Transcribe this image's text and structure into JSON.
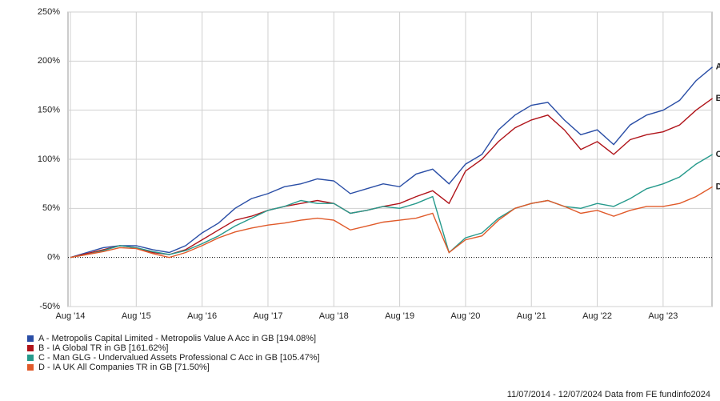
{
  "chart_data": {
    "type": "line",
    "categories": [
      "Aug '14",
      null,
      null,
      null,
      "Aug '15",
      null,
      null,
      null,
      "Aug '16",
      null,
      null,
      null,
      "Aug '17",
      null,
      null,
      null,
      "Aug '18",
      null,
      null,
      null,
      "Aug '19",
      null,
      null,
      null,
      "Aug '20",
      null,
      null,
      null,
      "Aug '21",
      null,
      null,
      null,
      "Aug '22",
      null,
      null,
      null,
      "Aug '23",
      null,
      null,
      null
    ],
    "series": [
      {
        "name": "A - Metropolis Capital Limited - Metropolis Value A Acc in GB [194.08%]",
        "label": "A",
        "color": "#2a4ea6",
        "values": [
          0,
          5,
          10,
          12,
          12,
          8,
          5,
          12,
          25,
          35,
          50,
          60,
          65,
          72,
          75,
          80,
          78,
          65,
          70,
          75,
          72,
          85,
          90,
          75,
          95,
          105,
          130,
          145,
          155,
          158,
          140,
          125,
          130,
          115,
          135,
          145,
          150,
          160,
          180,
          194
        ]
      },
      {
        "name": "B - IA Global TR in GB [161.62%]",
        "label": "B",
        "color": "#b0141a",
        "values": [
          0,
          4,
          8,
          12,
          10,
          5,
          3,
          8,
          18,
          28,
          38,
          42,
          48,
          52,
          55,
          58,
          55,
          45,
          48,
          52,
          55,
          62,
          68,
          55,
          88,
          100,
          118,
          132,
          140,
          145,
          130,
          110,
          118,
          105,
          120,
          125,
          128,
          135,
          150,
          162
        ]
      },
      {
        "name": "C - Man GLG - Undervalued Assets Professional C Acc in GB [105.47%]",
        "label": "C",
        "color": "#269a8c",
        "values": [
          0,
          3,
          7,
          12,
          10,
          6,
          3,
          7,
          14,
          22,
          32,
          40,
          48,
          52,
          58,
          55,
          55,
          45,
          48,
          52,
          50,
          55,
          62,
          5,
          20,
          25,
          40,
          50,
          55,
          58,
          52,
          50,
          55,
          52,
          60,
          70,
          75,
          82,
          95,
          105
        ]
      },
      {
        "name": "D - IA UK All Companies TR in GB [71.50%]",
        "label": "D",
        "color": "#e05a2a",
        "values": [
          0,
          3,
          6,
          10,
          9,
          4,
          0,
          5,
          12,
          20,
          26,
          30,
          33,
          35,
          38,
          40,
          38,
          28,
          32,
          36,
          38,
          40,
          45,
          5,
          18,
          22,
          38,
          50,
          55,
          58,
          52,
          45,
          48,
          42,
          48,
          52,
          52,
          55,
          62,
          72
        ]
      }
    ],
    "ylim": [
      -50,
      250
    ],
    "yticks": [
      {
        "value": -50,
        "label": "-50%"
      },
      {
        "value": 0,
        "label": "0%"
      },
      {
        "value": 50,
        "label": "50%"
      },
      {
        "value": 100,
        "label": "100%"
      },
      {
        "value": 150,
        "label": "150%"
      },
      {
        "value": 200,
        "label": "200%"
      },
      {
        "value": 250,
        "label": "250%"
      }
    ],
    "grid": true,
    "legend": "bottom-left",
    "footer": "11/07/2014 - 12/07/2024 Data from FE fundinfo2024"
  }
}
